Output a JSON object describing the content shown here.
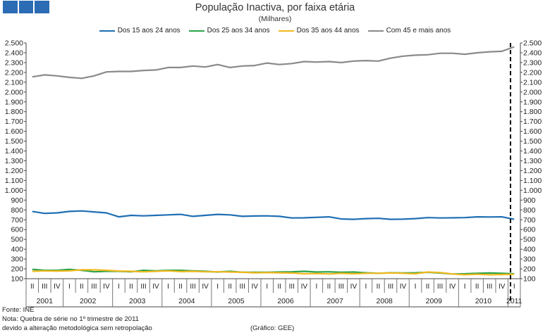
{
  "colors": {
    "series": [
      "#1f6fb4",
      "#2aa44a",
      "#f2b81e",
      "#8a8a8a"
    ],
    "logo": "#2b6cb4",
    "grid": "#d4d4d4",
    "axis": "#444444",
    "break_line": "#000000"
  },
  "chart_data": {
    "type": "line",
    "title": "População Inactiva, por faixa etária",
    "subtitle": "(Milhares)",
    "xlabel": "",
    "ylabel": "",
    "ylim": [
      100,
      2500
    ],
    "ytick_step": 100,
    "y_tick_labels": [
      "100",
      "200",
      "300",
      "400",
      "500",
      "600",
      "700",
      "800",
      "900",
      "1.000",
      "1.100",
      "1.200",
      "1.300",
      "1.400",
      "1.500",
      "1.600",
      "1.700",
      "1.800",
      "1.900",
      "2.000",
      "2.100",
      "2.200",
      "2.300",
      "2.400",
      "2.500"
    ],
    "grid": false,
    "legend_position": "top",
    "quarters": [
      "II",
      "III",
      "IV",
      "I",
      "II",
      "III",
      "IV",
      "I",
      "II",
      "III",
      "IV",
      "I",
      "II",
      "III",
      "IV",
      "I",
      "II",
      "III",
      "IV",
      "I",
      "II",
      "III",
      "IV",
      "I",
      "II",
      "III",
      "IV",
      "I",
      "II",
      "III",
      "IV",
      "I",
      "II",
      "III",
      "IV",
      "I",
      "II",
      "III",
      "IV",
      "I"
    ],
    "years": [
      {
        "label": "2001",
        "start": 0,
        "end": 2
      },
      {
        "label": "2002",
        "start": 3,
        "end": 6
      },
      {
        "label": "2003",
        "start": 7,
        "end": 10
      },
      {
        "label": "2004",
        "start": 11,
        "end": 14
      },
      {
        "label": "2005",
        "start": 15,
        "end": 18
      },
      {
        "label": "2006",
        "start": 19,
        "end": 22
      },
      {
        "label": "2007",
        "start": 23,
        "end": 26
      },
      {
        "label": "2008",
        "start": 27,
        "end": 30
      },
      {
        "label": "2009",
        "start": 31,
        "end": 34
      },
      {
        "label": "2010",
        "start": 35,
        "end": 38
      },
      {
        "label": "2011",
        "start": 39,
        "end": 39
      }
    ],
    "series_break_index": 39,
    "series": [
      {
        "name": "Dos 15 aos 24 anos",
        "values": [
          785,
          765,
          770,
          785,
          790,
          780,
          770,
          730,
          745,
          740,
          745,
          750,
          755,
          735,
          745,
          755,
          750,
          735,
          738,
          740,
          735,
          718,
          720,
          725,
          730,
          708,
          705,
          712,
          715,
          705,
          706,
          712,
          722,
          718,
          720,
          722,
          730,
          728,
          730,
          705
        ]
      },
      {
        "name": "Dos 25 aos 34 anos",
        "values": [
          195,
          185,
          185,
          195,
          185,
          170,
          175,
          175,
          170,
          185,
          180,
          185,
          185,
          180,
          175,
          168,
          175,
          165,
          165,
          165,
          168,
          170,
          175,
          168,
          170,
          165,
          168,
          160,
          155,
          160,
          158,
          160,
          165,
          158,
          148,
          150,
          155,
          158,
          155,
          150
        ]
      },
      {
        "name": "Dos 35 aos 44 anos",
        "values": [
          175,
          180,
          178,
          180,
          190,
          190,
          185,
          178,
          175,
          170,
          175,
          180,
          172,
          175,
          170,
          170,
          168,
          165,
          160,
          162,
          160,
          158,
          150,
          152,
          148,
          155,
          150,
          155,
          155,
          158,
          155,
          150,
          168,
          162,
          148,
          140,
          145,
          140,
          142,
          145
        ]
      },
      {
        "name": "Com 45 e mais anos",
        "values": [
          2155,
          2175,
          2165,
          2150,
          2140,
          2165,
          2205,
          2210,
          2210,
          2220,
          2225,
          2250,
          2250,
          2265,
          2255,
          2280,
          2250,
          2265,
          2270,
          2295,
          2280,
          2290,
          2310,
          2305,
          2310,
          2300,
          2315,
          2320,
          2315,
          2345,
          2365,
          2375,
          2380,
          2395,
          2395,
          2385,
          2400,
          2410,
          2415,
          2460
        ]
      }
    ]
  },
  "footer": {
    "source": "Fonte: INE",
    "note_line1": "Nota: Quebra de série no 1º trimestre de 2011",
    "note_line2": "devido a alteração metodológica sem retropolação",
    "credit": "(Gráfico: GEE)"
  }
}
